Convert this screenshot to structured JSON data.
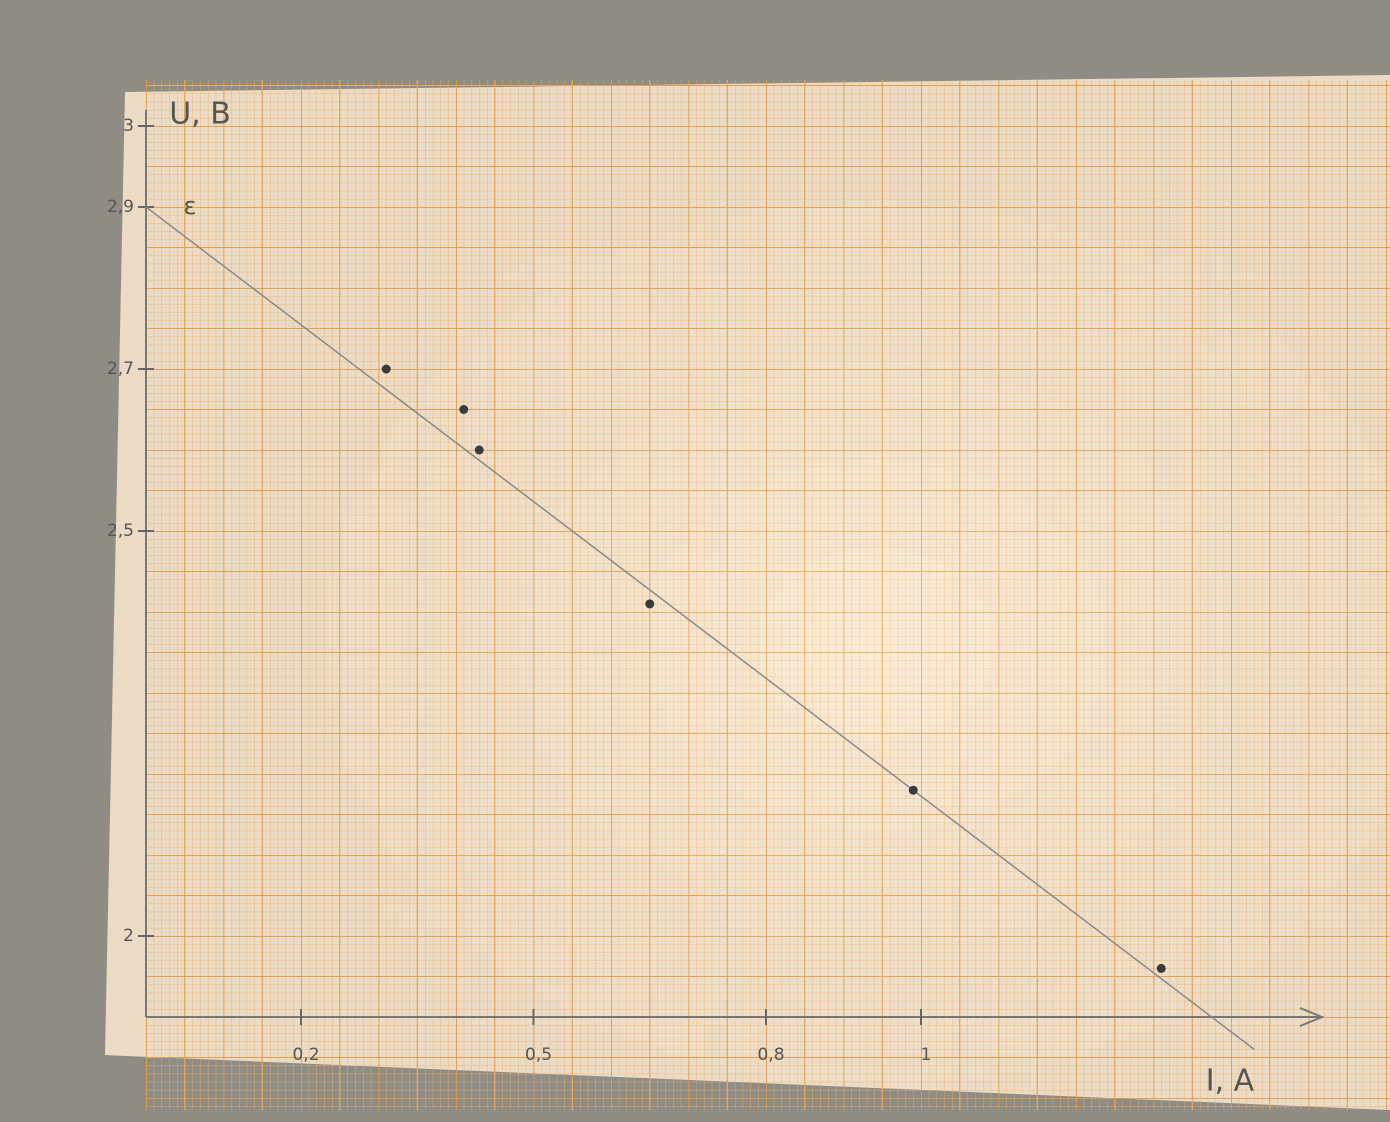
{
  "chart_data": {
    "type": "scatter",
    "x_label": "I, A",
    "y_label": "U, B",
    "annotation": {
      "text": "ε",
      "value": 2.9
    },
    "x": [
      0.31,
      0.41,
      0.43,
      0.65,
      0.99,
      1.31
    ],
    "values": [
      2.7,
      2.65,
      2.6,
      2.41,
      2.18,
      1.96
    ],
    "color": "#3a3a3a",
    "fit_line": {
      "x": [
        0,
        1.43
      ],
      "values": [
        2.9,
        1.86
      ],
      "color": "#8a8a8a"
    },
    "xlim": [
      0,
      1.5
    ],
    "ylim": [
      1.9,
      3.0
    ],
    "xticks": [
      {
        "value": 0.2,
        "label": "0,2"
      },
      {
        "value": 0.5,
        "label": "0,5"
      },
      {
        "value": 0.8,
        "label": "0,8"
      },
      1
    ],
    "yticks": [
      2,
      {
        "value": 2.5,
        "label": "2,5"
      },
      {
        "value": 2.7,
        "label": "2,7"
      },
      {
        "value": 2.9,
        "label": "2,9"
      },
      3
    ],
    "grid": true
  }
}
